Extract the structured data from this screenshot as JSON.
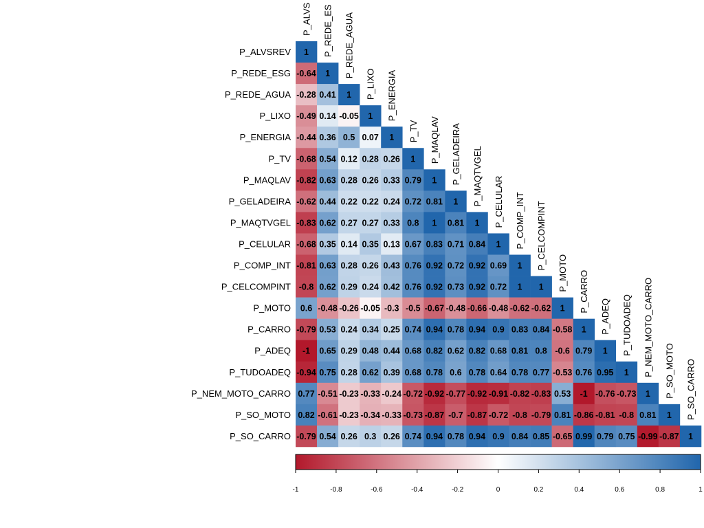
{
  "chart_data": {
    "type": "heatmap",
    "subtype": "lower-triangular correlation matrix",
    "variables": [
      "P_ALVSREV",
      "P_REDE_ESG",
      "P_REDE_AGUA",
      "P_LIXO",
      "P_ENERGIA",
      "P_TV",
      "P_MAQLAV",
      "P_GELADEIRA",
      "P_MAQTVGEL",
      "P_CELULAR",
      "P_COMP_INT",
      "P_CELCOMPINT",
      "P_MOTO",
      "P_CARRO",
      "P_ADEQ",
      "P_TUDOADEQ",
      "P_NEM_MOTO_CARRO",
      "P_SO_MOTO",
      "P_SO_CARRO"
    ],
    "column_label_texts": [
      "P_ALVS",
      "P_REDE_ES",
      "P_REDE_AGUA",
      "P_LIXO",
      "P_ENERGIA",
      "P_TV",
      "P_MAQLAV",
      "P_GELADEIRA",
      "P_MAQTVGEL",
      "P_CELULAR",
      "P_COMP_INT",
      "P_CELCOMPINT",
      "P_MOTO",
      "P_CARRO",
      "P_ADEQ",
      "P_TUDOADEQ",
      "P_NEM_MOTO_CARRO",
      "P_SO_MOTO",
      "P_SO_CARRO"
    ],
    "values": [
      [
        1
      ],
      [
        -0.64,
        1
      ],
      [
        -0.28,
        0.41,
        1
      ],
      [
        -0.49,
        0.14,
        -0.05,
        1
      ],
      [
        -0.44,
        0.36,
        0.5,
        0.07,
        1
      ],
      [
        -0.68,
        0.54,
        0.12,
        0.28,
        0.26,
        1
      ],
      [
        -0.82,
        0.63,
        0.28,
        0.26,
        0.33,
        0.79,
        1
      ],
      [
        -0.62,
        0.44,
        0.22,
        0.22,
        0.24,
        0.72,
        0.81,
        1
      ],
      [
        -0.83,
        0.62,
        0.27,
        0.27,
        0.33,
        0.8,
        1,
        0.81,
        1
      ],
      [
        -0.68,
        0.35,
        0.14,
        0.35,
        0.13,
        0.67,
        0.83,
        0.71,
        0.84,
        1
      ],
      [
        -0.81,
        0.63,
        0.28,
        0.26,
        0.43,
        0.76,
        0.92,
        0.72,
        0.92,
        0.69,
        1
      ],
      [
        -0.8,
        0.62,
        0.29,
        0.24,
        0.42,
        0.76,
        0.92,
        0.73,
        0.92,
        0.72,
        1,
        1
      ],
      [
        0.6,
        -0.48,
        -0.26,
        -0.05,
        -0.3,
        -0.5,
        -0.67,
        -0.48,
        -0.66,
        -0.48,
        -0.62,
        -0.62,
        1
      ],
      [
        -0.79,
        0.53,
        0.24,
        0.34,
        0.25,
        0.74,
        0.94,
        0.78,
        0.94,
        0.9,
        0.83,
        0.84,
        -0.58,
        1
      ],
      [
        -1,
        0.65,
        0.29,
        0.48,
        0.44,
        0.68,
        0.82,
        0.62,
        0.82,
        0.68,
        0.81,
        0.8,
        -0.6,
        0.79,
        1
      ],
      [
        -0.94,
        0.75,
        0.28,
        0.62,
        0.39,
        0.68,
        0.78,
        0.6,
        0.78,
        0.64,
        0.78,
        0.77,
        -0.53,
        0.76,
        0.95,
        1
      ],
      [
        0.77,
        -0.51,
        -0.23,
        -0.33,
        -0.24,
        -0.72,
        -0.92,
        -0.77,
        -0.92,
        -0.91,
        -0.82,
        -0.83,
        0.53,
        -1,
        -0.76,
        -0.73,
        1
      ],
      [
        0.82,
        -0.61,
        -0.23,
        -0.34,
        -0.33,
        -0.73,
        -0.87,
        -0.7,
        -0.87,
        -0.72,
        -0.8,
        -0.79,
        0.81,
        -0.86,
        -0.81,
        -0.8,
        0.81,
        1
      ],
      [
        -0.79,
        0.54,
        0.26,
        0.3,
        0.26,
        0.74,
        0.94,
        0.78,
        0.94,
        0.9,
        0.84,
        0.85,
        -0.65,
        0.99,
        0.79,
        0.75,
        -0.99,
        -0.87,
        1
      ]
    ],
    "color_scale": {
      "range": [
        -1,
        1
      ],
      "low": "#B2182B",
      "mid": "#FFFFFF",
      "high": "#2166AC",
      "ticks": [
        -1,
        -0.8,
        -0.6,
        -0.4,
        -0.2,
        0,
        0.2,
        0.4,
        0.6,
        0.8,
        1
      ],
      "tick_labels": [
        "-1",
        "-0.8",
        "-0.6",
        "-0.4",
        "-0.2",
        "0",
        "0.2",
        "0.4",
        "0.6",
        "0.8",
        "1"
      ]
    },
    "legend_position": "bottom",
    "grid": false
  }
}
